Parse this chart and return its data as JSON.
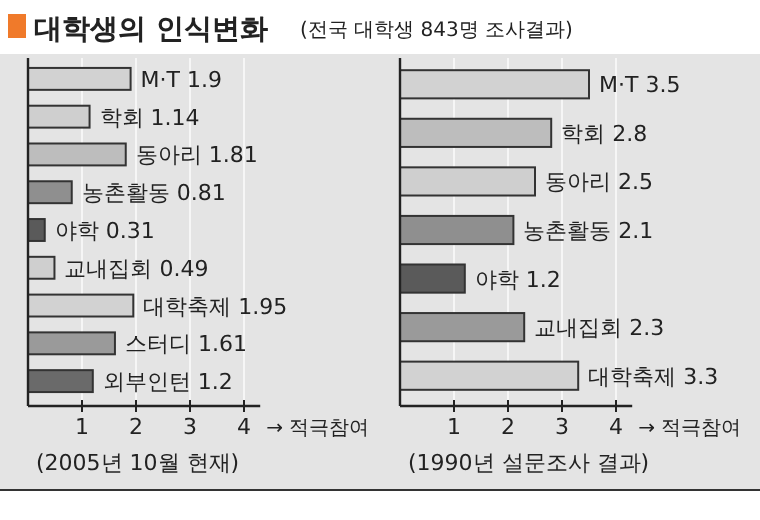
{
  "chart_data": [
    {
      "type": "other",
      "title": "대학생의 인식변화",
      "subtitle": "(전국 대학생 843명 조사결과)"
    },
    {
      "type": "bar",
      "orientation": "horizontal",
      "xlabel": "→ 적극참여",
      "annotations": [
        "(2005년 10월 현재)"
      ],
      "categories": [
        null,
        null,
        null,
        null,
        null,
        null,
        null,
        null,
        null
      ],
      "values": [
        1.9,
        1.14,
        1.81,
        0.81,
        0.31,
        0.49,
        1.95,
        1.61,
        1.2
      ],
      "value_labels": [
        "M·T 1.9",
        "학회 1.14",
        "동아리 1.81",
        "농촌활동 0.81",
        "야학 0.31",
        "교내집회 0.49",
        "대학축제 1.95",
        "스터디 1.61",
        "외부인턴 1.2"
      ],
      "colors": [
        "#d2d2d2",
        "#cfcfcf",
        "#bdbdbd",
        "#8f8f8f",
        "#5a5a5a",
        "#cfcfcf",
        "#d2d2d2",
        "#9a9a9a",
        "#6a6a6a"
      ],
      "xlim": [
        0,
        4.3
      ],
      "xticks": [
        1,
        2,
        3,
        4
      ],
      "grid": "x"
    },
    {
      "type": "bar",
      "orientation": "horizontal",
      "xlabel": "→ 적극참여",
      "annotations": [
        "(1990년 설문조사 결과)"
      ],
      "categories": [
        null,
        null,
        null,
        null,
        null,
        null,
        null
      ],
      "values": [
        3.5,
        2.8,
        2.5,
        2.1,
        1.2,
        2.3,
        3.3
      ],
      "value_labels": [
        "M·T 3.5",
        "학회 2.8",
        "동아리 2.5",
        "농촌활동 2.1",
        "야학 1.2",
        "교내집회 2.3",
        "대학축제 3.3"
      ],
      "colors": [
        "#d2d2d2",
        "#bdbdbd",
        "#cfcfcf",
        "#8f8f8f",
        "#5a5a5a",
        "#9a9a9a",
        "#d2d2d2"
      ],
      "xlim": [
        0,
        4.3
      ],
      "xticks": [
        1,
        2,
        3,
        4
      ],
      "grid": "x"
    }
  ]
}
